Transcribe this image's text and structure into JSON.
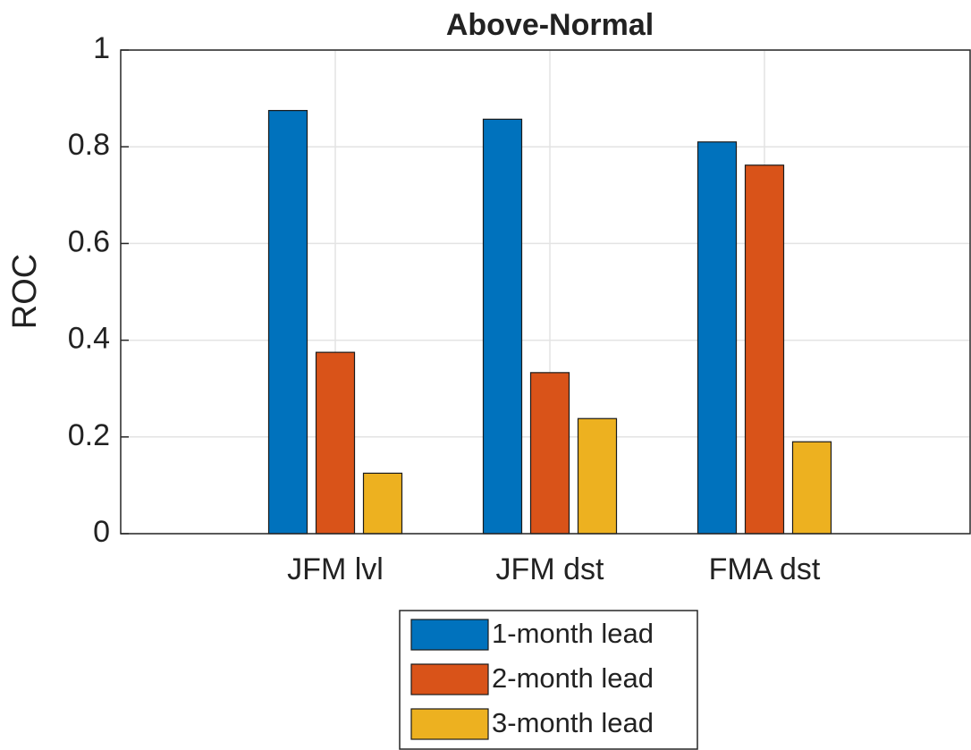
{
  "chart_data": {
    "type": "bar",
    "title": "Above-Normal",
    "y_label": "ROC",
    "categories": [
      "JFM lvl",
      "JFM dst",
      "FMA dst"
    ],
    "series": [
      {
        "name": "1-month lead",
        "color": "#0072BD",
        "values": [
          0.875,
          0.857,
          0.81
        ]
      },
      {
        "name": "2-month lead",
        "color": "#D95319",
        "values": [
          0.375,
          0.333,
          0.762
        ]
      },
      {
        "name": "3-month lead",
        "color": "#EDB120",
        "values": [
          0.125,
          0.238,
          0.19
        ]
      }
    ],
    "ylim": [
      0,
      1
    ],
    "yticks": [
      0,
      0.2,
      0.4,
      0.6,
      0.8,
      1
    ],
    "grid": true,
    "legend": "bottom"
  }
}
